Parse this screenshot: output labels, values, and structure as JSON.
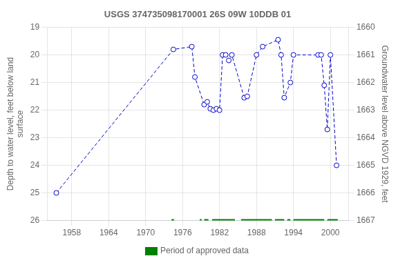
{
  "chart_data": {
    "type": "line",
    "title": "USGS 374735098170001 26S 09W 10DDB 01",
    "ylabel": "Depth to water level, feet below land\nsurface",
    "y2label": "Groundwater level above NGVD 1929, feet",
    "x": [
      1955.5,
      1974.5,
      1977.5,
      1978.0,
      1979.5,
      1980.0,
      1980.5,
      1981.0,
      1981.5,
      1982.0,
      1982.5,
      1983.0,
      1983.5,
      1984.0,
      1986.0,
      1986.5,
      1988.0,
      1989.0,
      1991.5,
      1992.0,
      1992.5,
      1993.5,
      1994.0,
      1998.0,
      1998.5,
      1999.0,
      1999.5,
      2000.0,
      2001.0
    ],
    "series": [
      {
        "values": [
          25.0,
          19.8,
          19.7,
          20.8,
          21.8,
          21.7,
          21.95,
          22.0,
          21.95,
          22.0,
          20.0,
          20.0,
          20.2,
          20.0,
          21.55,
          21.5,
          20.0,
          19.7,
          19.45,
          20.0,
          21.55,
          21.0,
          20.0,
          20.0,
          20.0,
          21.1,
          22.7,
          20.0,
          24.0
        ],
        "color": "#0000CC",
        "marker": "open_circle",
        "line_style": "dashed"
      }
    ],
    "periods": {
      "name": "Period of approved data",
      "color": "#008000",
      "ranges": [
        [
          1974.2,
          1974.6
        ],
        [
          1978.8,
          1979.1
        ],
        [
          1979.5,
          1980.2
        ],
        [
          1980.8,
          1984.5
        ],
        [
          1985.5,
          1990.5
        ],
        [
          1991.0,
          1992.5
        ],
        [
          1993.0,
          1993.5
        ],
        [
          1994.0,
          1999.0
        ],
        [
          1999.5,
          2001.2
        ]
      ]
    },
    "xlim": [
      1954,
      2003
    ],
    "xticks": [
      1958,
      1964,
      1970,
      1976,
      1982,
      1988,
      1994,
      2000
    ],
    "ylim": [
      26.0,
      19.0
    ],
    "yticks": [
      19.0,
      20.0,
      21.0,
      22.0,
      23.0,
      24.0,
      25.0,
      26.0
    ],
    "y2lim": [
      1667.0,
      1660.0
    ],
    "y2ticks": [
      1660.0,
      1661.0,
      1662.0,
      1663.0,
      1664.0,
      1665.0,
      1666.0,
      1667.0
    ],
    "grid": true,
    "legend": "bottom"
  }
}
